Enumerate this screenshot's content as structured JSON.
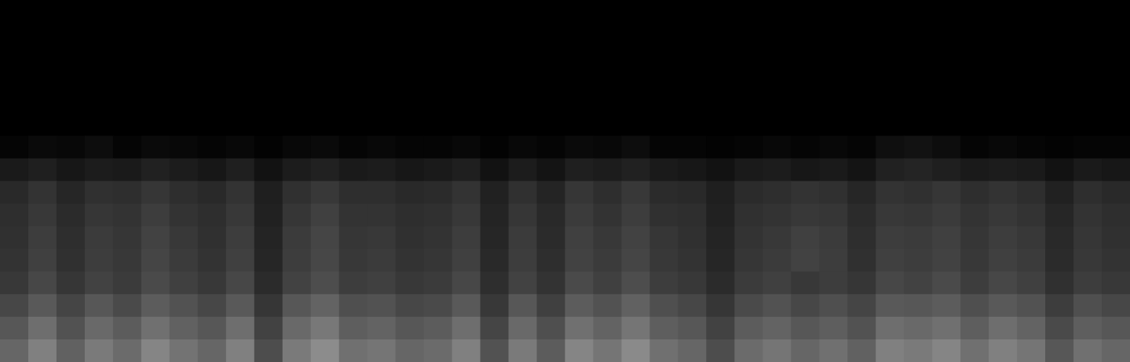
{
  "chart_data": {
    "type": "heatmap",
    "tick_labels": false,
    "zlim": [
      0,
      1
    ],
    "z": [
      [
        0,
        0,
        0,
        0,
        0,
        0,
        0,
        0,
        0,
        0,
        0,
        0,
        0,
        0,
        0,
        0,
        0,
        0,
        0,
        0,
        0,
        0,
        0,
        0,
        0,
        0,
        0,
        0,
        0,
        0,
        0,
        0,
        0,
        0,
        0,
        0,
        0,
        0,
        0,
        0
      ],
      [
        0,
        0,
        0,
        0,
        0,
        0,
        0,
        0,
        0,
        0,
        0,
        0,
        0,
        0,
        0,
        0,
        0,
        0,
        0,
        0,
        0,
        0,
        0,
        0,
        0,
        0,
        0,
        0,
        0,
        0,
        0,
        0,
        0,
        0,
        0,
        0,
        0,
        0,
        0,
        0
      ],
      [
        0,
        0,
        0,
        0,
        0,
        0,
        0,
        0,
        0,
        0,
        0,
        0,
        0,
        0,
        0,
        0,
        0,
        0,
        0,
        0,
        0,
        0,
        0,
        0,
        0,
        0,
        0,
        0,
        0,
        0,
        0,
        0,
        0,
        0,
        0,
        0,
        0,
        0,
        0,
        0
      ],
      [
        0,
        0,
        0,
        0,
        0,
        0,
        0,
        0,
        0,
        0,
        0,
        0,
        0,
        0,
        0,
        0,
        0,
        0,
        0,
        0,
        0,
        0,
        0,
        0,
        0,
        0,
        0,
        0,
        0,
        0,
        0,
        0,
        0,
        0,
        0,
        0,
        0,
        0,
        0,
        0
      ],
      [
        0,
        0,
        0,
        0,
        0,
        0,
        0,
        0,
        0,
        0,
        0,
        0,
        0,
        0,
        0,
        0,
        0,
        0,
        0,
        0,
        0,
        0,
        0,
        0,
        0,
        0,
        0,
        0,
        0,
        0,
        0,
        0,
        0,
        0,
        0,
        0,
        0,
        0,
        0,
        0
      ],
      [
        0,
        0,
        0,
        0,
        0,
        0,
        0,
        0,
        0,
        0,
        0,
        0,
        0,
        0,
        0,
        0,
        0,
        0,
        0,
        0,
        0,
        0,
        0,
        0,
        0,
        0,
        0,
        0,
        0,
        0,
        0,
        0,
        0,
        0,
        0,
        0,
        0,
        0,
        0,
        0
      ],
      [
        0.02,
        0.04,
        0.03,
        0.05,
        0.02,
        0.04,
        0.03,
        0.02,
        0.03,
        0.01,
        0.03,
        0.04,
        0.02,
        0.03,
        0.02,
        0.02,
        0.03,
        0.01,
        0.03,
        0.02,
        0.04,
        0.03,
        0.05,
        0.02,
        0.02,
        0.01,
        0.02,
        0.03,
        0.02,
        0.03,
        0.02,
        0.06,
        0.07,
        0.05,
        0.02,
        0.03,
        0.02,
        0.01,
        0.02,
        0.02
      ],
      [
        0.1,
        0.12,
        0.09,
        0.11,
        0.1,
        0.13,
        0.11,
        0.09,
        0.12,
        0.07,
        0.11,
        0.13,
        0.1,
        0.11,
        0.09,
        0.1,
        0.12,
        0.07,
        0.11,
        0.08,
        0.12,
        0.11,
        0.13,
        0.1,
        0.09,
        0.07,
        0.1,
        0.11,
        0.09,
        0.1,
        0.08,
        0.13,
        0.14,
        0.12,
        0.1,
        0.11,
        0.1,
        0.07,
        0.1,
        0.09
      ],
      [
        0.16,
        0.2,
        0.15,
        0.19,
        0.18,
        0.21,
        0.18,
        0.16,
        0.2,
        0.12,
        0.19,
        0.22,
        0.18,
        0.18,
        0.16,
        0.17,
        0.2,
        0.13,
        0.19,
        0.14,
        0.21,
        0.18,
        0.22,
        0.17,
        0.16,
        0.12,
        0.17,
        0.18,
        0.2,
        0.19,
        0.15,
        0.2,
        0.19,
        0.21,
        0.18,
        0.2,
        0.18,
        0.13,
        0.18,
        0.16
      ],
      [
        0.18,
        0.22,
        0.17,
        0.21,
        0.2,
        0.24,
        0.2,
        0.18,
        0.22,
        0.13,
        0.21,
        0.25,
        0.2,
        0.2,
        0.18,
        0.19,
        0.22,
        0.14,
        0.21,
        0.16,
        0.23,
        0.2,
        0.24,
        0.19,
        0.18,
        0.13,
        0.19,
        0.2,
        0.22,
        0.21,
        0.17,
        0.22,
        0.21,
        0.23,
        0.2,
        0.22,
        0.2,
        0.15,
        0.2,
        0.18
      ],
      [
        0.19,
        0.24,
        0.18,
        0.23,
        0.21,
        0.26,
        0.22,
        0.19,
        0.24,
        0.14,
        0.23,
        0.27,
        0.21,
        0.22,
        0.19,
        0.2,
        0.24,
        0.15,
        0.23,
        0.17,
        0.25,
        0.22,
        0.26,
        0.21,
        0.19,
        0.14,
        0.2,
        0.22,
        0.25,
        0.23,
        0.18,
        0.24,
        0.23,
        0.25,
        0.21,
        0.24,
        0.22,
        0.16,
        0.21,
        0.19
      ],
      [
        0.2,
        0.25,
        0.19,
        0.24,
        0.22,
        0.27,
        0.23,
        0.2,
        0.25,
        0.15,
        0.24,
        0.28,
        0.22,
        0.23,
        0.2,
        0.21,
        0.25,
        0.16,
        0.24,
        0.18,
        0.26,
        0.23,
        0.27,
        0.22,
        0.2,
        0.15,
        0.21,
        0.23,
        0.26,
        0.24,
        0.19,
        0.25,
        0.24,
        0.26,
        0.22,
        0.25,
        0.23,
        0.17,
        0.22,
        0.2
      ],
      [
        0.22,
        0.28,
        0.21,
        0.26,
        0.23,
        0.29,
        0.25,
        0.22,
        0.28,
        0.17,
        0.26,
        0.3,
        0.24,
        0.25,
        0.22,
        0.23,
        0.28,
        0.18,
        0.26,
        0.2,
        0.29,
        0.25,
        0.3,
        0.24,
        0.22,
        0.17,
        0.23,
        0.25,
        0.22,
        0.24,
        0.21,
        0.28,
        0.26,
        0.29,
        0.24,
        0.28,
        0.25,
        0.19,
        0.24,
        0.22
      ],
      [
        0.28,
        0.35,
        0.27,
        0.34,
        0.29,
        0.36,
        0.32,
        0.28,
        0.35,
        0.21,
        0.34,
        0.39,
        0.31,
        0.32,
        0.28,
        0.29,
        0.35,
        0.22,
        0.34,
        0.25,
        0.36,
        0.32,
        0.38,
        0.31,
        0.28,
        0.21,
        0.29,
        0.32,
        0.28,
        0.31,
        0.27,
        0.35,
        0.34,
        0.36,
        0.31,
        0.35,
        0.32,
        0.24,
        0.31,
        0.28
      ],
      [
        0.34,
        0.43,
        0.32,
        0.41,
        0.36,
        0.44,
        0.38,
        0.34,
        0.43,
        0.26,
        0.41,
        0.47,
        0.37,
        0.39,
        0.34,
        0.36,
        0.43,
        0.27,
        0.41,
        0.31,
        0.44,
        0.39,
        0.46,
        0.37,
        0.34,
        0.26,
        0.36,
        0.39,
        0.34,
        0.37,
        0.32,
        0.43,
        0.41,
        0.44,
        0.37,
        0.43,
        0.39,
        0.29,
        0.37,
        0.34
      ],
      [
        0.4,
        0.5,
        0.38,
        0.48,
        0.42,
        0.52,
        0.45,
        0.4,
        0.5,
        0.3,
        0.48,
        0.55,
        0.44,
        0.46,
        0.4,
        0.42,
        0.5,
        0.32,
        0.48,
        0.36,
        0.52,
        0.46,
        0.54,
        0.44,
        0.4,
        0.3,
        0.42,
        0.46,
        0.4,
        0.44,
        0.38,
        0.5,
        0.48,
        0.52,
        0.44,
        0.5,
        0.46,
        0.34,
        0.44,
        0.4
      ]
    ]
  }
}
